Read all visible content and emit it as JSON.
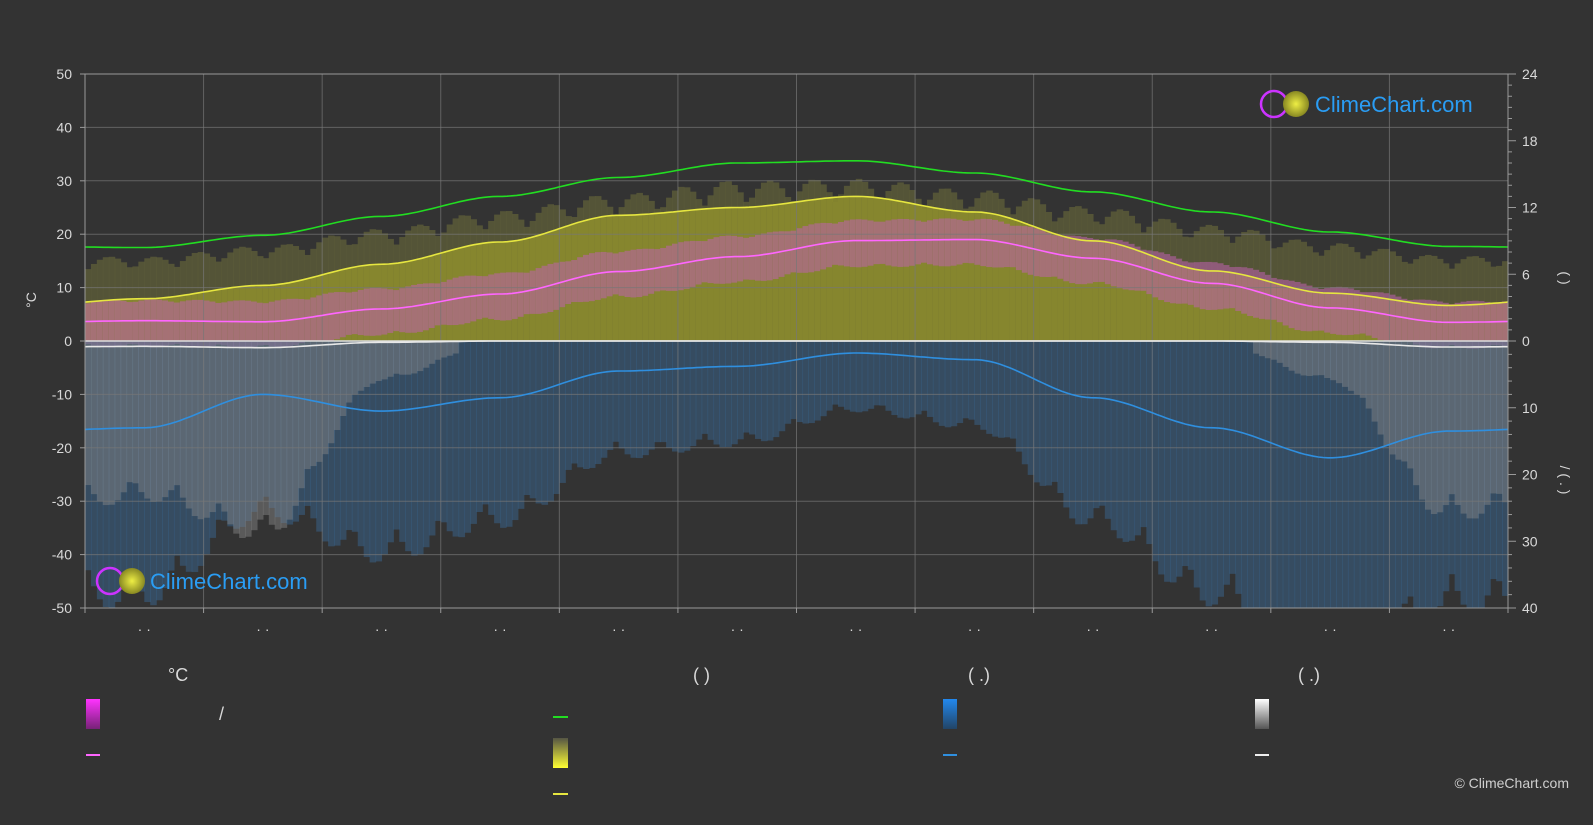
{
  "chart_data": {
    "type": "area",
    "left_axis": {
      "label": "°C",
      "ticks": [
        50,
        40,
        30,
        20,
        10,
        0,
        -10,
        -20,
        -30,
        -40,
        -50
      ],
      "range": [
        -50,
        50
      ]
    },
    "right_axis_top": {
      "ticks": [
        24,
        18,
        12,
        6,
        0
      ],
      "range": [
        0,
        24
      ],
      "label": "(  )"
    },
    "right_axis_bottom": {
      "ticks": [
        10,
        20,
        30,
        40
      ],
      "range": [
        0,
        40
      ],
      "label": "/ ( . )"
    },
    "x_months": 12,
    "x_tick_labels": [
      "· ·",
      "· ·",
      "· ·",
      "· ·",
      "· ·",
      "· ·",
      "· ·",
      "· ·",
      "· ·",
      "· ·",
      "· ·",
      "· ·"
    ],
    "series": [
      {
        "key": "daylight_hours",
        "color": "#22dd22",
        "values": [
          8.4,
          9.5,
          11.2,
          13.0,
          14.7,
          16.0,
          16.2,
          15.1,
          13.4,
          11.6,
          9.8,
          8.5
        ]
      },
      {
        "key": "sunshine_hours",
        "color": "#e6e640",
        "values": [
          3.8,
          5.0,
          6.9,
          8.9,
          11.3,
          12.0,
          13.0,
          11.6,
          9.0,
          6.3,
          4.3,
          3.2
        ]
      },
      {
        "key": "mean_temperature",
        "color": "#ff66ff",
        "values": [
          3.8,
          3.6,
          6.0,
          8.8,
          13.0,
          15.8,
          18.8,
          19.0,
          15.5,
          10.8,
          6.2,
          3.5
        ]
      },
      {
        "key": "rain_mm",
        "color": "#2f8fdf",
        "values": [
          13.0,
          8.0,
          10.5,
          8.5,
          4.5,
          3.8,
          1.8,
          2.8,
          8.5,
          13.0,
          17.5,
          13.5
        ]
      },
      {
        "key": "snow_mm",
        "color": "#e8e8e8",
        "values": [
          0.8,
          1.0,
          0.2,
          0.0,
          0.0,
          0.0,
          0.0,
          0.0,
          0.0,
          0.0,
          0.2,
          0.9
        ]
      }
    ]
  },
  "brand": {
    "name": "ClimeChart.com"
  },
  "legend": {
    "col1_title": "°C",
    "col1_slash": "/",
    "col2_title": "(        )",
    "col3_title": "(   .)",
    "col4_title": "(   .)"
  },
  "copyright": "© ClimeChart.com",
  "colors": {
    "background": "#333333",
    "grid": "#777777",
    "sunshine_band": "#8c8c2e",
    "temp_band": "#c060b0",
    "rain_band": "#3a6a9a"
  }
}
